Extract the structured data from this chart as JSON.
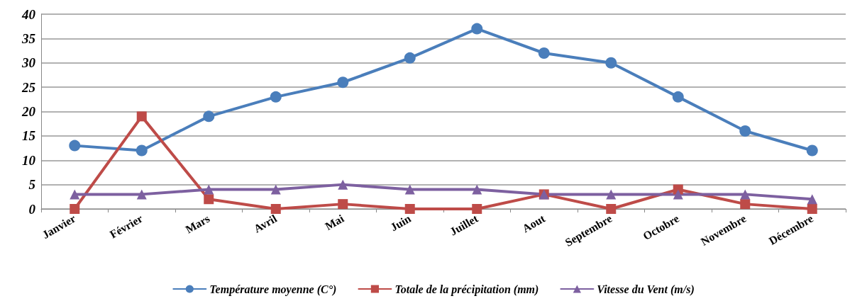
{
  "chart_data": {
    "type": "line",
    "categories": [
      "Janvier",
      "Février",
      "Mars",
      "Avril",
      "Mai",
      "Juin",
      "Juillet",
      "Aout",
      "Septembre",
      "Octobre",
      "Novembre",
      "Décembre"
    ],
    "series": [
      {
        "name": "Température moyenne (C°)",
        "color": "#4a7ebb",
        "marker": "circle",
        "values": [
          13,
          12,
          19,
          23,
          26,
          31,
          37,
          32,
          30,
          23,
          16,
          12
        ]
      },
      {
        "name": "Totale de la précipitation (mm)",
        "color": "#be4b48",
        "marker": "square",
        "values": [
          0,
          19,
          2,
          0,
          1,
          0,
          0,
          3,
          0,
          4,
          1,
          0
        ]
      },
      {
        "name": "Vitesse du Vent (m/s)",
        "color": "#7d60a0",
        "marker": "triangle",
        "values": [
          3,
          3,
          4,
          4,
          5,
          4,
          4,
          3,
          3,
          3,
          3,
          2
        ]
      }
    ],
    "ylim": [
      0,
      40
    ],
    "yticks": [
      0,
      5,
      10,
      15,
      20,
      25,
      30,
      35,
      40
    ],
    "grid": "y",
    "legend": "bottom",
    "line_style": "solid"
  }
}
